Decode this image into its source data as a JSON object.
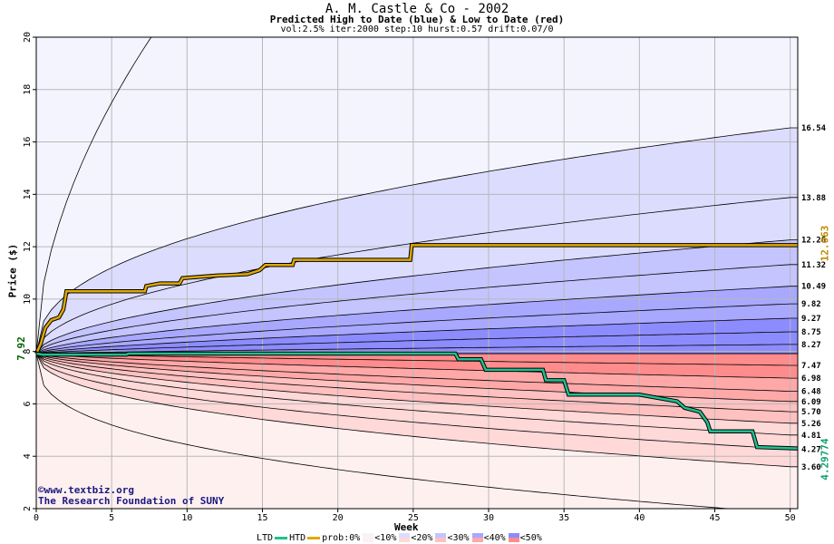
{
  "header": {
    "title": "A. M. Castle & Co - 2002",
    "subtitle": "Predicted High to Date (blue) &  Low to Date (red)",
    "params": "vol:2.5% iter:2000 step:10 hurst:0.57 drift:0.07/0"
  },
  "chart_data": {
    "type": "area",
    "xlabel": "Week",
    "ylabel": "Price ($)",
    "xlim": [
      0,
      50.5
    ],
    "ylim": [
      2,
      20
    ],
    "x_ticks": [
      0,
      5,
      10,
      15,
      20,
      25,
      30,
      35,
      40,
      45,
      50
    ],
    "y_ticks": [
      2,
      4,
      6,
      8,
      10,
      12,
      14,
      16,
      18,
      20
    ],
    "start_price": 7.92,
    "start_label": "7.92",
    "grid": true,
    "upper_percentiles": [
      {
        "end": 16.54,
        "label": "16.54"
      },
      {
        "end": 13.88,
        "label": "13.88"
      },
      {
        "end": 12.26,
        "label": "12.26"
      },
      {
        "end": 11.32,
        "label": "11.32"
      },
      {
        "end": 10.49,
        "label": "10.49"
      },
      {
        "end": 9.82,
        "label": "9.82"
      },
      {
        "end": 9.27,
        "label": "9.27"
      },
      {
        "end": 8.75,
        "label": "8.75"
      },
      {
        "end": 8.27,
        "label": "8.27"
      }
    ],
    "lower_percentiles": [
      {
        "end": 7.47,
        "label": "7.47"
      },
      {
        "end": 6.98,
        "label": "6.98"
      },
      {
        "end": 6.48,
        "label": "6.48"
      },
      {
        "end": 6.09,
        "label": "6.09"
      },
      {
        "end": 5.7,
        "label": "5.70"
      },
      {
        "end": 5.26,
        "label": "5.26"
      },
      {
        "end": 4.81,
        "label": "4.81"
      },
      {
        "end": 4.27,
        "label": "4.27"
      },
      {
        "end": 3.6,
        "label": "3.60"
      }
    ],
    "htd_series": {
      "name": "HTD",
      "end_label": "12.063",
      "color": "#e0a800",
      "points": [
        [
          0,
          7.92
        ],
        [
          0.3,
          8.3
        ],
        [
          0.6,
          8.9
        ],
        [
          1.0,
          9.2
        ],
        [
          1.5,
          9.3
        ],
        [
          1.8,
          9.6
        ],
        [
          2.0,
          10.3
        ],
        [
          7.2,
          10.3
        ],
        [
          7.3,
          10.5
        ],
        [
          8.2,
          10.6
        ],
        [
          9.5,
          10.6
        ],
        [
          9.7,
          10.8
        ],
        [
          12.0,
          10.9
        ],
        [
          14.0,
          10.95
        ],
        [
          14.8,
          11.1
        ],
        [
          15.2,
          11.3
        ],
        [
          17.0,
          11.3
        ],
        [
          17.1,
          11.5
        ],
        [
          24.8,
          11.5
        ],
        [
          24.9,
          12.06
        ],
        [
          50.5,
          12.06
        ]
      ]
    },
    "ltd_series": {
      "name": "LTD",
      "end_label": "4.29774",
      "color": "#20c090",
      "points": [
        [
          0,
          7.92
        ],
        [
          0.4,
          7.88
        ],
        [
          6.0,
          7.88
        ],
        [
          6.1,
          7.92
        ],
        [
          27.8,
          7.92
        ],
        [
          28.0,
          7.7
        ],
        [
          29.5,
          7.7
        ],
        [
          29.8,
          7.3
        ],
        [
          33.6,
          7.3
        ],
        [
          33.8,
          6.9
        ],
        [
          35.0,
          6.9
        ],
        [
          35.3,
          6.35
        ],
        [
          40.0,
          6.35
        ],
        [
          41.5,
          6.2
        ],
        [
          42.5,
          6.1
        ],
        [
          43.0,
          5.85
        ],
        [
          44.0,
          5.7
        ],
        [
          44.5,
          5.3
        ],
        [
          44.7,
          4.95
        ],
        [
          47.5,
          4.95
        ],
        [
          47.8,
          4.35
        ],
        [
          50.5,
          4.3
        ]
      ]
    }
  },
  "credits": {
    "site": "©www.textbiz.org",
    "org": "The Research Foundation of SUNY"
  },
  "legend": {
    "ltd": "LTD",
    "htd": "HTD",
    "prob": "prob:0%",
    "bins": [
      "<10%",
      "<20%",
      "<30%",
      "<40%",
      "<50%"
    ],
    "blue_colors": [
      "#f4f4ff",
      "#dcdcff",
      "#c4c4ff",
      "#a8a8ff",
      "#8c8cff"
    ],
    "red_colors": [
      "#fff0f0",
      "#ffd8d8",
      "#ffc0c0",
      "#ffa8a8",
      "#ff8c8c"
    ]
  }
}
